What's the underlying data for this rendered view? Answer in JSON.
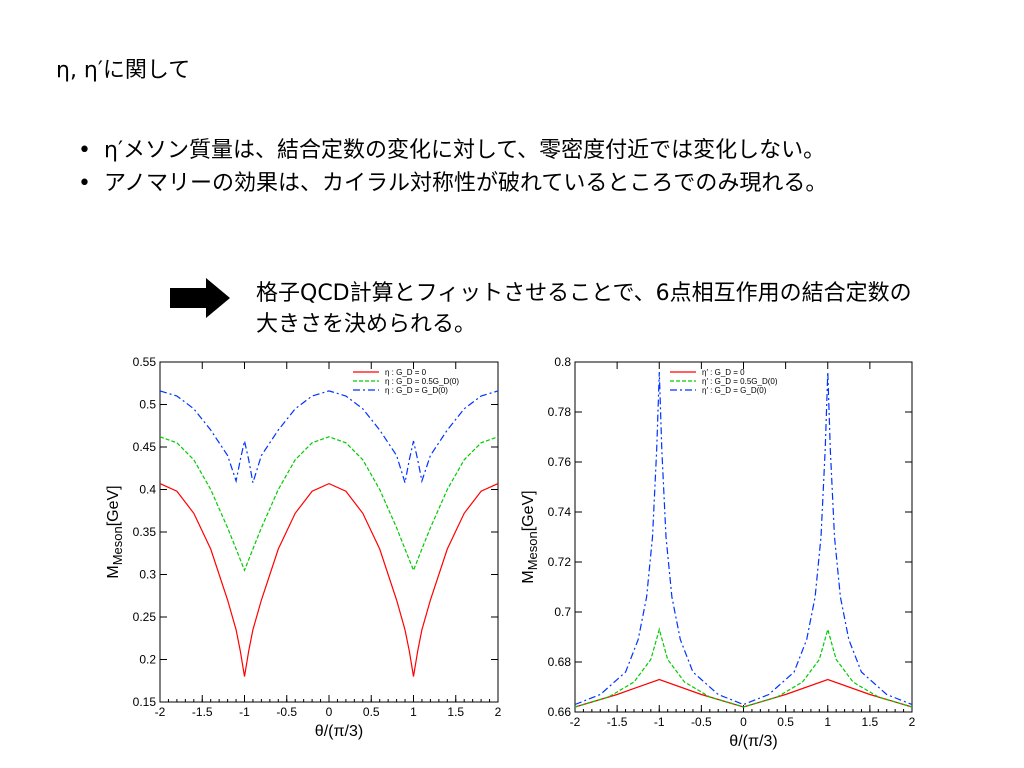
{
  "slide": {
    "title": "η, η′に関して",
    "bullets": [
      "η′メソン質量は、結合定数の変化に対して、零密度付近では変化しない。",
      "アノマリーの効果は、カイラル対称性が破れているところでのみ現れる。"
    ],
    "bullet_marker": "•",
    "result": "格子QCD計算とフィットさせることで、6点相互作用の結合定数の大きさを決められる。",
    "arrow_icon": "right-arrow"
  },
  "chart_data": [
    {
      "type": "line",
      "title": "",
      "xlabel": "θ/(π/3)",
      "ylabel": "M_Meson[GeV]",
      "ylabel_main": "M",
      "ylabel_sub": "Meson",
      "ylabel_unit": "[GeV]",
      "xlim": [
        -2,
        2
      ],
      "ylim": [
        0.15,
        0.55
      ],
      "xticks": [
        -2,
        -1.5,
        -1,
        -0.5,
        0,
        0.5,
        1,
        1.5,
        2
      ],
      "xtick_labels": [
        "-2",
        "-1.5",
        "-1",
        "-0.5",
        "0",
        "0.5",
        "1",
        "1.5",
        "2"
      ],
      "yticks": [
        0.15,
        0.2,
        0.25,
        0.3,
        0.35,
        0.4,
        0.45,
        0.5,
        0.55
      ],
      "ytick_labels": [
        "0.15",
        "0.2",
        "0.25",
        "0.3",
        "0.35",
        "0.4",
        "0.45",
        "0.5",
        "0.55"
      ],
      "grid": false,
      "legend_position": "top-right",
      "series": [
        {
          "name": "η : G_D = 0",
          "color": "#ff0000",
          "dash": "solid",
          "x": [
            -2,
            -1.8,
            -1.6,
            -1.4,
            -1.2,
            -1.1,
            -1.05,
            -1.0,
            -0.95,
            -0.9,
            -0.8,
            -0.6,
            -0.4,
            -0.2,
            0,
            0.2,
            0.4,
            0.6,
            0.8,
            0.9,
            0.95,
            1.0,
            1.05,
            1.1,
            1.2,
            1.4,
            1.6,
            1.8,
            2
          ],
          "y": [
            0.407,
            0.398,
            0.372,
            0.33,
            0.27,
            0.235,
            0.21,
            0.18,
            0.21,
            0.235,
            0.27,
            0.33,
            0.372,
            0.398,
            0.407,
            0.398,
            0.372,
            0.33,
            0.27,
            0.235,
            0.21,
            0.18,
            0.21,
            0.235,
            0.27,
            0.33,
            0.372,
            0.398,
            0.407
          ]
        },
        {
          "name": "η : G_D = 0.5G_D(0)",
          "color": "#00cc00",
          "dash": "dashed",
          "x": [
            -2,
            -1.8,
            -1.6,
            -1.4,
            -1.2,
            -1.1,
            -1.0,
            -0.9,
            -0.8,
            -0.6,
            -0.4,
            -0.2,
            0,
            0.2,
            0.4,
            0.6,
            0.8,
            0.9,
            1.0,
            1.1,
            1.2,
            1.4,
            1.6,
            1.8,
            2
          ],
          "y": [
            0.462,
            0.455,
            0.435,
            0.4,
            0.355,
            0.33,
            0.305,
            0.33,
            0.355,
            0.4,
            0.435,
            0.455,
            0.462,
            0.455,
            0.435,
            0.4,
            0.355,
            0.33,
            0.305,
            0.33,
            0.355,
            0.4,
            0.435,
            0.455,
            0.462
          ]
        },
        {
          "name": "η : G_D = G_D(0)",
          "color": "#0033ff",
          "dash": "dashdot",
          "x": [
            -2,
            -1.8,
            -1.6,
            -1.4,
            -1.2,
            -1.1,
            -1.05,
            -1.0,
            -0.95,
            -0.9,
            -0.8,
            -0.6,
            -0.4,
            -0.2,
            0,
            0.2,
            0.4,
            0.6,
            0.8,
            0.9,
            0.95,
            1.0,
            1.05,
            1.1,
            1.2,
            1.4,
            1.6,
            1.8,
            2
          ],
          "y": [
            0.516,
            0.51,
            0.495,
            0.47,
            0.44,
            0.41,
            0.435,
            0.457,
            0.435,
            0.408,
            0.44,
            0.47,
            0.495,
            0.51,
            0.516,
            0.51,
            0.495,
            0.47,
            0.44,
            0.408,
            0.435,
            0.457,
            0.435,
            0.41,
            0.44,
            0.47,
            0.495,
            0.51,
            0.516
          ]
        }
      ]
    },
    {
      "type": "line",
      "title": "",
      "xlabel": "θ/(π/3)",
      "ylabel": "M_Meson[GeV]",
      "ylabel_main": "M",
      "ylabel_sub": "Meson",
      "ylabel_unit": "[GeV]",
      "xlim": [
        -2,
        2
      ],
      "ylim": [
        0.66,
        0.8
      ],
      "xticks": [
        -2,
        -1.5,
        -1,
        -0.5,
        0,
        0.5,
        1,
        1.5,
        2
      ],
      "xtick_labels": [
        "-2",
        "-1.5",
        "-1",
        "-0.5",
        "0",
        "0.5",
        "1",
        "1.5",
        "2"
      ],
      "yticks": [
        0.66,
        0.68,
        0.7,
        0.72,
        0.74,
        0.76,
        0.78,
        0.8
      ],
      "ytick_labels": [
        "0.66",
        "0.68",
        "0.7",
        "0.72",
        "0.74",
        "0.76",
        "0.78",
        "0.8"
      ],
      "grid": false,
      "legend_position": "top-left",
      "series": [
        {
          "name": "η′ : G_D = 0",
          "color": "#ff0000",
          "dash": "solid",
          "x": [
            -2,
            -1.5,
            -1.0,
            -0.5,
            0,
            0.5,
            1.0,
            1.5,
            2
          ],
          "y": [
            0.662,
            0.667,
            0.673,
            0.667,
            0.662,
            0.667,
            0.673,
            0.667,
            0.662
          ]
        },
        {
          "name": "η′ : G_D = 0.5G_D(0)",
          "color": "#00cc00",
          "dash": "dashed",
          "x": [
            -2,
            -1.6,
            -1.3,
            -1.1,
            -1.0,
            -0.9,
            -0.7,
            -0.4,
            0,
            0.4,
            0.7,
            0.9,
            1.0,
            1.1,
            1.3,
            1.6,
            2
          ],
          "y": [
            0.662,
            0.666,
            0.672,
            0.681,
            0.693,
            0.681,
            0.672,
            0.666,
            0.662,
            0.666,
            0.672,
            0.681,
            0.693,
            0.681,
            0.672,
            0.666,
            0.662
          ]
        },
        {
          "name": "η′ : G_D = G_D(0)",
          "color": "#0033ff",
          "dash": "dashdot",
          "x": [
            -2,
            -1.7,
            -1.4,
            -1.25,
            -1.15,
            -1.08,
            -1.03,
            -1.0,
            -0.97,
            -0.92,
            -0.85,
            -0.75,
            -0.6,
            -0.3,
            0,
            0.3,
            0.6,
            0.75,
            0.85,
            0.92,
            0.97,
            1.0,
            1.03,
            1.08,
            1.15,
            1.25,
            1.4,
            1.7,
            2
          ],
          "y": [
            0.663,
            0.667,
            0.676,
            0.689,
            0.706,
            0.73,
            0.765,
            0.796,
            0.765,
            0.73,
            0.706,
            0.689,
            0.676,
            0.667,
            0.663,
            0.667,
            0.676,
            0.689,
            0.706,
            0.73,
            0.765,
            0.796,
            0.765,
            0.73,
            0.706,
            0.689,
            0.676,
            0.667,
            0.663
          ]
        }
      ]
    }
  ]
}
